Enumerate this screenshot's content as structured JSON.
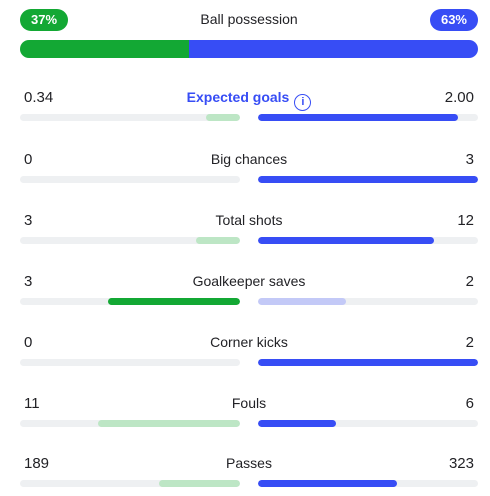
{
  "possession": {
    "label": "Ball possession",
    "home_text": "37%",
    "away_text": "63%",
    "home_value": 37,
    "away_value": 63
  },
  "stats": [
    {
      "label": "Expected goals",
      "home": "0.34",
      "away": "2.00",
      "home_num": 0.34,
      "away_num": 2.0,
      "max": 2.2,
      "winner": "away",
      "link": true,
      "info_icon": "info-icon"
    },
    {
      "label": "Big chances",
      "home": "0",
      "away": "3",
      "home_num": 0,
      "away_num": 3,
      "max": 3,
      "winner": "away"
    },
    {
      "label": "Total shots",
      "home": "3",
      "away": "12",
      "home_num": 3,
      "away_num": 12,
      "max": 15,
      "winner": "away"
    },
    {
      "label": "Goalkeeper saves",
      "home": "3",
      "away": "2",
      "home_num": 3,
      "away_num": 2,
      "max": 5,
      "winner": "home"
    },
    {
      "label": "Corner kicks",
      "home": "0",
      "away": "2",
      "home_num": 0,
      "away_num": 2,
      "max": 2,
      "winner": "away"
    },
    {
      "label": "Fouls",
      "home": "11",
      "away": "6",
      "home_num": 11,
      "away_num": 6,
      "max": 17,
      "winner": "away"
    },
    {
      "label": "Passes",
      "home": "189",
      "away": "323",
      "home_num": 189,
      "away_num": 323,
      "max": 512,
      "winner": "away"
    }
  ],
  "colors": {
    "home_strong": "#13a834",
    "home_weak": "#bde6c5",
    "away_strong": "#374df5",
    "away_weak": "#c3c9f7",
    "track": "#eef0f2"
  }
}
